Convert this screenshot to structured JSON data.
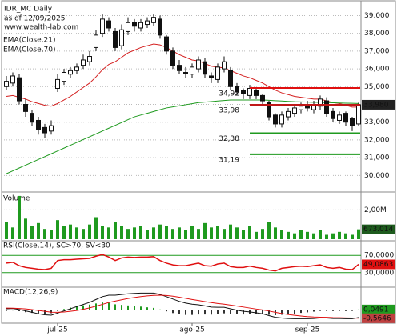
{
  "chart_data": [
    {
      "type": "candlestick",
      "title": "IDR_MC Daily",
      "subtitle": "as of 12/09/2025",
      "watermark": "www.wealth-lab.com",
      "open": [
        35000,
        35200,
        35500,
        34000,
        33500,
        33100,
        32700,
        32500,
        34900,
        35300,
        35700,
        35900,
        36200,
        36400,
        37200,
        38000,
        38700,
        38100,
        37300,
        38100,
        38600,
        38300,
        38500,
        38600,
        38800,
        37800,
        37000,
        36200,
        35800,
        35700,
        36000,
        36400,
        35600,
        35400,
        36000,
        35900,
        35000,
        34800,
        34500,
        34800,
        34500,
        34100,
        33400,
        32900,
        33300,
        33500,
        33700,
        34000,
        33700,
        33900,
        34200,
        33600,
        33100,
        33500,
        33200,
        32900
      ],
      "high": [
        35600,
        35800,
        35700,
        34300,
        33700,
        33300,
        32900,
        33100,
        35700,
        36000,
        36100,
        36300,
        36800,
        37000,
        38200,
        39100,
        38900,
        38300,
        38500,
        38900,
        38800,
        38800,
        38900,
        39100,
        39000,
        37900,
        37200,
        36500,
        36100,
        36300,
        36700,
        36600,
        35800,
        36300,
        36700,
        36100,
        35200,
        34900,
        35100,
        34900,
        34600,
        34200,
        33500,
        33600,
        33800,
        34000,
        34100,
        34200,
        34200,
        34500,
        34400,
        33800,
        33600,
        33600,
        33300,
        34100
      ],
      "low": [
        34800,
        35000,
        34000,
        33300,
        32800,
        32300,
        32100,
        32300,
        34700,
        35100,
        35500,
        35700,
        36000,
        36200,
        37000,
        37800,
        38100,
        37000,
        37100,
        37900,
        38100,
        38100,
        38300,
        38400,
        37700,
        36800,
        36000,
        35700,
        35500,
        35500,
        35800,
        35500,
        35200,
        35200,
        35800,
        34800,
        34500,
        34300,
        34300,
        34300,
        34000,
        33100,
        32700,
        32700,
        33100,
        33300,
        33500,
        33600,
        33500,
        33700,
        33300,
        33000,
        32900,
        32800,
        32500,
        32800
      ],
      "close": [
        35300,
        35600,
        34200,
        33600,
        33000,
        32600,
        32400,
        32800,
        35400,
        35800,
        35900,
        36100,
        36500,
        36700,
        37900,
        38800,
        38300,
        37200,
        38200,
        38600,
        38400,
        38600,
        38700,
        38900,
        37900,
        37000,
        36200,
        35900,
        35800,
        36100,
        36500,
        35700,
        35500,
        36100,
        36400,
        35000,
        34700,
        34600,
        34900,
        34500,
        34200,
        33300,
        32900,
        33400,
        33600,
        33800,
        33900,
        33800,
        34000,
        34300,
        33500,
        33200,
        33400,
        33000,
        32800,
        33980
      ],
      "series": [
        {
          "name": "EMA(Close,21)",
          "color": "#d42020",
          "values": [
            34450,
            34500,
            34400,
            34300,
            34150,
            34050,
            33950,
            33900,
            34050,
            34250,
            34450,
            34700,
            34950,
            35200,
            35550,
            35950,
            36250,
            36400,
            36650,
            36900,
            37050,
            37200,
            37300,
            37400,
            37350,
            37200,
            37000,
            36800,
            36650,
            36500,
            36450,
            36300,
            36150,
            36100,
            36050,
            35900,
            35750,
            35600,
            35500,
            35350,
            35200,
            35000,
            34800,
            34650,
            34550,
            34450,
            34400,
            34350,
            34300,
            34300,
            34200,
            34100,
            34050,
            33950,
            33850,
            33850
          ]
        },
        {
          "name": "EMA(Close,70)",
          "color": "#1f9a1f",
          "values": [
            30100,
            30260,
            30420,
            30580,
            30740,
            30900,
            31060,
            31220,
            31380,
            31540,
            31700,
            31860,
            32020,
            32180,
            32340,
            32500,
            32660,
            32820,
            32980,
            33140,
            33300,
            33400,
            33500,
            33600,
            33700,
            33800,
            33860,
            33920,
            33980,
            34040,
            34100,
            34130,
            34160,
            34190,
            34220,
            34250,
            34250,
            34250,
            34250,
            34250,
            34250,
            34230,
            34210,
            34190,
            34170,
            34150,
            34140,
            34130,
            34120,
            34110,
            34100,
            34090,
            34080,
            34070,
            34060,
            34050
          ]
        }
      ],
      "levels": [
        {
          "value": 34920,
          "label": "34,92",
          "color": "#e01010"
        },
        {
          "value": 33980,
          "label": "33,98",
          "color": "#c01818"
        },
        {
          "value": 32380,
          "label": "32,38",
          "color": "#1f9a1f"
        },
        {
          "value": 31190,
          "label": "31,19",
          "color": "#1f9a1f"
        }
      ],
      "ylim": [
        29250,
        39650
      ],
      "yticks": [
        {
          "value": 30000,
          "label": "30,000"
        },
        {
          "value": 31000,
          "label": "31,000"
        },
        {
          "value": 32000,
          "label": "32,000"
        },
        {
          "value": 33000,
          "label": "33,000"
        },
        {
          "value": 34000,
          "label": "34,000"
        },
        {
          "value": 35000,
          "label": "35,000"
        },
        {
          "value": 36000,
          "label": "36,000"
        },
        {
          "value": 37000,
          "label": "37,000"
        },
        {
          "value": 38000,
          "label": "38,000"
        },
        {
          "value": 39000,
          "label": "39,000"
        }
      ],
      "last_labels": [
        {
          "value": 33980,
          "label": "33,980",
          "color": "#222222"
        }
      ],
      "grid": true
    },
    {
      "type": "bar",
      "title": "Volume",
      "color": "#1f9a1f",
      "values": [
        1200000,
        800000,
        2950000,
        1400000,
        900000,
        1100000,
        700000,
        600000,
        1300000,
        900000,
        1000000,
        800000,
        700000,
        1000000,
        1500000,
        900000,
        800000,
        1200000,
        900000,
        700000,
        800000,
        900000,
        600000,
        800000,
        1000000,
        900000,
        700000,
        800000,
        600000,
        900000,
        700000,
        1100000,
        800000,
        900000,
        700000,
        1000000,
        800000,
        600000,
        900000,
        500000,
        700000,
        1200000,
        800000,
        600000,
        500000,
        400000,
        600000,
        500000,
        400000,
        600000,
        300000,
        400000,
        500000,
        400000,
        300000,
        673014
      ],
      "ylim": [
        0,
        3000000
      ],
      "yticks": [
        {
          "value": 2000000,
          "label": "2,00M"
        }
      ],
      "last_labels": [
        {
          "value": 673014,
          "label": "673.014",
          "color": "#1d5a1d"
        }
      ],
      "grid": true
    },
    {
      "type": "line",
      "title": "RSI(Close,14), SC>70, SV<30",
      "color": "#e01010",
      "values": [
        52,
        54,
        46,
        42,
        40,
        38,
        37,
        40,
        58,
        60,
        60,
        61,
        62,
        63,
        68,
        72,
        66,
        58,
        64,
        66,
        65,
        66,
        66,
        67,
        58,
        52,
        48,
        46,
        46,
        49,
        52,
        46,
        45,
        50,
        52,
        44,
        42,
        42,
        45,
        42,
        40,
        36,
        34,
        40,
        42,
        44,
        45,
        44,
        46,
        48,
        42,
        40,
        42,
        38,
        37,
        49.0863
      ],
      "ylim": [
        0,
        100
      ],
      "yticks": [
        {
          "value": 70,
          "label": "70,0000"
        },
        {
          "value": 30,
          "label": "30,0000"
        }
      ],
      "grid_color": "#1f9a1f",
      "last_labels": [
        {
          "value": 49.0863,
          "label": "49,0863",
          "color": "#e01010"
        }
      ],
      "grid": true
    },
    {
      "type": "macd",
      "title": "MACD(12,26,9)",
      "macd": [
        0.1,
        0.12,
        0.05,
        -0.05,
        -0.15,
        -0.25,
        -0.32,
        -0.35,
        -0.2,
        -0.05,
        0.1,
        0.25,
        0.4,
        0.55,
        0.75,
        0.95,
        1.05,
        1.05,
        1.1,
        1.15,
        1.18,
        1.2,
        1.2,
        1.2,
        1.1,
        0.95,
        0.78,
        0.62,
        0.5,
        0.42,
        0.38,
        0.3,
        0.22,
        0.2,
        0.2,
        0.1,
        0.0,
        -0.08,
        -0.12,
        -0.18,
        -0.25,
        -0.38,
        -0.5,
        -0.55,
        -0.58,
        -0.6,
        -0.6,
        -0.6,
        -0.58,
        -0.54,
        -0.55,
        -0.58,
        -0.58,
        -0.6,
        -0.6,
        -0.5155
      ],
      "signal": [
        0.15,
        0.14,
        0.12,
        0.09,
        0.04,
        -0.02,
        -0.08,
        -0.14,
        -0.15,
        -0.13,
        -0.08,
        -0.02,
        0.06,
        0.16,
        0.28,
        0.41,
        0.54,
        0.64,
        0.73,
        0.82,
        0.89,
        0.95,
        1.0,
        1.04,
        1.05,
        1.03,
        0.98,
        0.91,
        0.83,
        0.75,
        0.68,
        0.6,
        0.53,
        0.47,
        0.42,
        0.36,
        0.29,
        0.22,
        0.15,
        0.08,
        0.02,
        -0.06,
        -0.15,
        -0.23,
        -0.3,
        -0.36,
        -0.41,
        -0.45,
        -0.48,
        -0.49,
        -0.5,
        -0.52,
        -0.53,
        -0.54,
        -0.55,
        -0.5646
      ],
      "histogram": [
        -0.05,
        -0.02,
        -0.07,
        -0.14,
        -0.19,
        -0.23,
        -0.24,
        -0.21,
        -0.05,
        0.08,
        0.18,
        0.27,
        0.34,
        0.39,
        0.47,
        0.54,
        0.51,
        0.41,
        0.37,
        0.33,
        0.29,
        0.25,
        0.2,
        0.16,
        0.05,
        -0.08,
        -0.2,
        -0.29,
        -0.33,
        -0.33,
        -0.3,
        -0.3,
        -0.31,
        -0.27,
        -0.22,
        -0.26,
        -0.29,
        -0.3,
        -0.27,
        -0.26,
        -0.27,
        -0.32,
        -0.35,
        -0.32,
        -0.28,
        -0.24,
        -0.19,
        -0.15,
        -0.1,
        -0.05,
        -0.05,
        -0.06,
        -0.05,
        -0.06,
        -0.05,
        0.0491
      ],
      "macd_color": "#111111",
      "signal_color": "#e01010",
      "hist_color": "#1f9a1f",
      "ylim": [
        -0.8,
        1.5
      ],
      "last_labels": [
        {
          "value": 0.0491,
          "label": "0,0491",
          "color": "#1f9a1f"
        },
        {
          "value": -0.5646,
          "label": "-0,5646",
          "color": "#c04040"
        }
      ],
      "categories": [
        null,
        null,
        null,
        null,
        null,
        null,
        null,
        null,
        "jul-25",
        null,
        null,
        null,
        null,
        null,
        null,
        null,
        null,
        null,
        null,
        null,
        null,
        null,
        null,
        null,
        null,
        null,
        null,
        null,
        null,
        "ago-25",
        null,
        null,
        null,
        null,
        null,
        null,
        null,
        null,
        null,
        null,
        null,
        null,
        null,
        null,
        null,
        null,
        null,
        "sep-25",
        null,
        null,
        null,
        null,
        null,
        null,
        null,
        null
      ]
    }
  ]
}
